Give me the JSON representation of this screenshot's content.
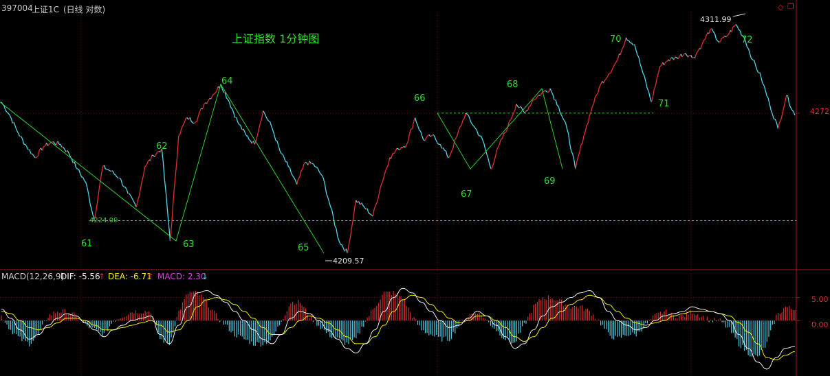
{
  "header": {
    "code": "397004",
    "name": "上证1C",
    "mode": "(日线 对数)"
  },
  "window_icons": [
    "diamond-icon",
    "restore-icon"
  ],
  "chart_data": [
    {
      "type": "line",
      "title": "上证指数 1分钟图",
      "subtitle": "",
      "xlabel": "",
      "ylabel": "",
      "scale": "log",
      "grid": true,
      "y_axis_labels": [
        "4272"
      ],
      "ylim": [
        4205,
        4320
      ],
      "price_labels": [
        {
          "text": "4311.99",
          "value": 4311.99
        },
        {
          "text": "4224.00",
          "value": 4224.0
        },
        {
          "text": "4209.57",
          "value": 4209.57
        }
      ],
      "reference_lines": [
        {
          "name": "upper-dashed",
          "value": 4272
        },
        {
          "name": "lower-dashed",
          "value": 4224.0
        }
      ],
      "wave_labels": [
        "61",
        "62",
        "63",
        "64",
        "65",
        "66",
        "67",
        "68",
        "69",
        "70",
        "71",
        "72"
      ],
      "wave_points": [
        {
          "label": "61",
          "value": 4224.0
        },
        {
          "label": "62",
          "value": 4256
        },
        {
          "label": "63",
          "value": 4215
        },
        {
          "label": "64",
          "value": 4285
        },
        {
          "label": "65",
          "value": 4209.57
        },
        {
          "label": "66",
          "value": 4272
        },
        {
          "label": "67",
          "value": 4247
        },
        {
          "label": "68",
          "value": 4283
        },
        {
          "label": "69",
          "value": 4247
        },
        {
          "label": "70",
          "value": 4306
        },
        {
          "label": "71",
          "value": 4277
        },
        {
          "label": "72",
          "value": 4311.99
        }
      ],
      "price_path": [
        4277,
        4271,
        4263,
        4257,
        4252,
        4257,
        4259,
        4258,
        4254,
        4247,
        4241,
        4224,
        4248,
        4246,
        4243,
        4236,
        4230,
        4248,
        4253,
        4256,
        4215,
        4262,
        4270,
        4268,
        4276,
        4280,
        4285,
        4277,
        4268,
        4262,
        4258,
        4273,
        4266,
        4255,
        4248,
        4240,
        4250,
        4249,
        4244,
        4230,
        4215,
        4209.57,
        4233,
        4230,
        4226,
        4240,
        4252,
        4256,
        4258,
        4270,
        4260,
        4262,
        4258,
        4252,
        4262,
        4272,
        4266,
        4260,
        4247,
        4258,
        4266,
        4276,
        4272,
        4278,
        4281,
        4283,
        4275,
        4265,
        4247,
        4262,
        4275,
        4285,
        4290,
        4296,
        4306,
        4303,
        4290,
        4277,
        4293,
        4296,
        4297,
        4299,
        4297,
        4303,
        4310,
        4304,
        4307,
        4311.99,
        4306,
        4296,
        4288,
        4276,
        4265,
        4280,
        4271
      ]
    },
    {
      "type": "line",
      "title": "MACD(12,26,9)",
      "subtitle": "",
      "xlabel": "",
      "ylabel": "",
      "grid": true,
      "ylim": [
        -12,
        10
      ],
      "y_axis_labels": [
        "5.00",
        "0.00"
      ],
      "legend": [
        {
          "name": "DIF",
          "text": "DIF: -5.56",
          "arrow": "↑",
          "color": "#f0f0f0"
        },
        {
          "name": "DEA",
          "text": "DEA: -6.71",
          "arrow": "↑",
          "color": "#f0f000"
        },
        {
          "name": "MACD",
          "text": "MACD: 2.30",
          "arrow": "↓",
          "color": "#e040e0"
        }
      ],
      "series": [
        {
          "name": "DIF",
          "values": [
            2.5,
            0.5,
            -2,
            -4,
            -3,
            -1,
            0.5,
            1.5,
            1,
            -0.5,
            -2,
            -3.5,
            -2,
            -1,
            0,
            0.5,
            1,
            -3,
            -5,
            -1,
            3,
            6,
            6.5,
            5.5,
            4,
            2,
            0,
            -2,
            -4,
            -5,
            -3,
            0.5,
            2,
            1.5,
            0,
            -2,
            -4,
            -6,
            -7,
            -5,
            -2,
            2,
            5,
            7,
            6,
            4,
            2,
            0,
            -1.5,
            -1,
            0.5,
            2,
            1,
            -1,
            -3.5,
            -6,
            -5,
            -2,
            1,
            3,
            4,
            5,
            6,
            6.5,
            5,
            2,
            0,
            -1,
            -2,
            -1.5,
            0,
            1,
            1.5,
            2,
            3,
            2.5,
            2,
            1.5,
            0,
            -3,
            -6,
            -9,
            -10.5,
            -8,
            -6,
            -5.56
          ]
        },
        {
          "name": "DEA",
          "values": [
            2,
            1.5,
            0,
            -1.5,
            -2,
            -1.5,
            -0.5,
            0.5,
            0.5,
            0,
            -1,
            -2,
            -2,
            -1.5,
            -1,
            -0.5,
            0,
            -1,
            -2.5,
            -2,
            0,
            3,
            4.5,
            5,
            4.5,
            3.5,
            2,
            0.5,
            -1.5,
            -3,
            -3,
            -1.5,
            0,
            1,
            0.5,
            -0.5,
            -2,
            -3.5,
            -5,
            -5,
            -3.5,
            -1,
            2,
            4.5,
            5.5,
            5,
            3.5,
            2,
            0.5,
            -0.5,
            0,
            1,
            1,
            0,
            -1.5,
            -3.5,
            -4.5,
            -3.5,
            -1.5,
            0.5,
            2,
            3.5,
            4.5,
            5.5,
            5,
            3.5,
            2,
            0.5,
            -0.5,
            -1,
            -0.5,
            0,
            1,
            1.5,
            2,
            2,
            2,
            1.5,
            1,
            -0.5,
            -2.5,
            -5,
            -8,
            -8.5,
            -7.5,
            -6.71
          ]
        },
        {
          "name": "MACD",
          "values": [
            1,
            -2,
            -4,
            -5,
            -3,
            1,
            2,
            2,
            1,
            -1,
            -2,
            -3,
            0,
            1,
            2,
            2,
            2,
            -4,
            -5,
            2,
            6,
            6,
            4,
            1,
            -1,
            -3,
            -4,
            -5,
            -5,
            -4,
            0,
            4,
            4,
            1,
            -1,
            -3,
            -4,
            -5,
            -4,
            0,
            3,
            6,
            6,
            5,
            1,
            -2,
            -3,
            -4,
            -4,
            -1,
            1,
            2,
            0,
            -2,
            -4,
            -5,
            -1,
            3,
            5,
            5,
            4,
            3,
            3,
            2,
            0,
            -3,
            -4,
            -3,
            -3,
            -1,
            1,
            2,
            1,
            1,
            2,
            1,
            0,
            0,
            -2,
            -5,
            -7,
            -8,
            -5,
            1,
            3,
            2.3
          ]
        }
      ]
    }
  ]
}
